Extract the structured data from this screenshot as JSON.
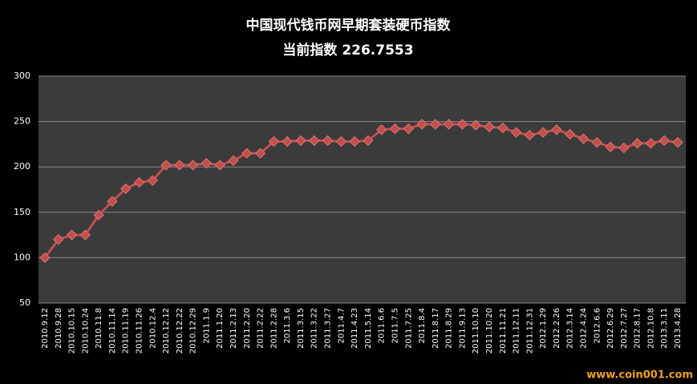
{
  "chart_data": {
    "type": "line",
    "title": "中国现代钱币网早期套装硬币指数",
    "subtitle": "当前指数 226.7553",
    "watermark": "www.coin001.com",
    "categories": [
      "2010.9.12",
      "2010.9.28",
      "2010.10.15",
      "2010.10.24",
      "2010.11.8",
      "2010.11.14",
      "2010.11.19",
      "2010.11.26",
      "2010.12.4",
      "2010.12.12",
      "2010.12.22",
      "2010.12.29",
      "2011.1.9",
      "2011.1.20",
      "2011.2.13",
      "2011.2.20",
      "2011.2.22",
      "2011.2.28",
      "2011.3.6",
      "2011.3.15",
      "2011.3.22",
      "2011.3.27",
      "2011.4.7",
      "2011.4.23",
      "2011.5.14",
      "2011.6.6",
      "2011.7.5",
      "2011.7.25",
      "2011.8.4",
      "2011.8.17",
      "2011.8.29",
      "2011.9.13",
      "2011.10.10",
      "2011.10.20",
      "2011.11.21",
      "2011.12.11",
      "2011.12.31",
      "2012.1.29",
      "2012.2.26",
      "2012.3.14",
      "2012.4.24",
      "2012.6.6",
      "2012.6.29",
      "2012.7.27",
      "2012.8.17",
      "2012.10.8",
      "2013.3.11",
      "2013.4.28"
    ],
    "series": [
      {
        "name": "指数",
        "color": "#c0504d",
        "values": [
          100,
          120,
          125,
          125,
          147,
          162,
          176,
          183,
          185,
          202,
          202,
          202,
          204,
          202,
          207,
          215,
          215,
          228,
          228,
          229,
          229,
          229,
          228,
          228,
          229,
          241,
          242,
          242,
          247,
          247,
          247,
          247,
          246,
          244,
          243,
          238,
          235,
          238,
          241,
          236,
          231,
          227,
          222,
          221,
          226,
          226,
          229,
          227
        ]
      }
    ],
    "ylim": [
      50,
      300
    ],
    "yticks": [
      50,
      100,
      150,
      200,
      250,
      300
    ],
    "grid": true
  }
}
